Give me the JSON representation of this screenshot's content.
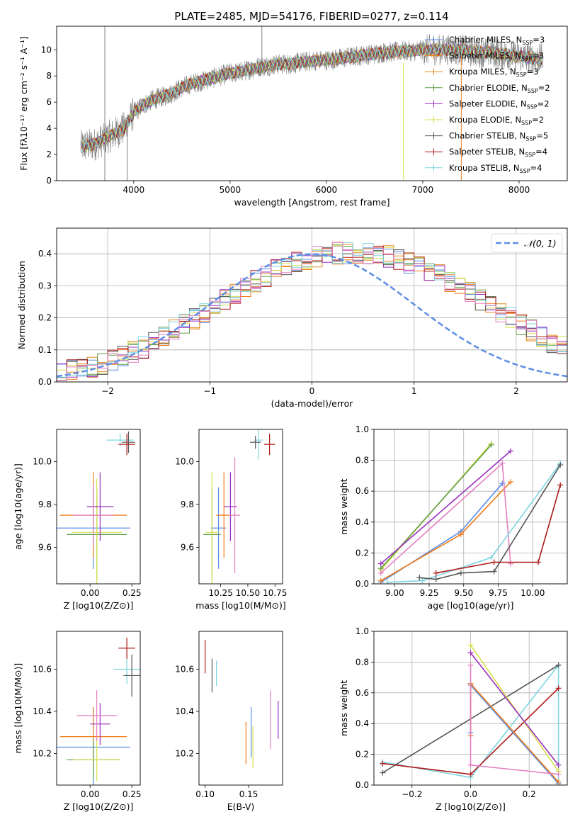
{
  "figure_title": "PLATE=2485, MJD=54176, FIBERID=0277, z=0.114",
  "colors": {
    "Chabrier MILES": "#5b8ee6",
    "Salpeter MILES": "#f07b1a",
    "Kroupa MILES": "#e08a1e",
    "Chabrier ELODIE": "#5f9e4a",
    "Salpeter ELODIE": "#9b30c0",
    "Kroupa ELODIE": "#d8e04a",
    "Chabrier STELIB": "#555555",
    "Salpeter STELIB": "#b01818",
    "Kroupa STELIB": "#7dd6e0",
    "pink": "#e67fc0",
    "data": "#808080"
  },
  "chart_data": [
    {
      "type": "line",
      "title": "PLATE=2485, MJD=54176, FIBERID=0277, z=0.114",
      "xlabel": "wavelength [Angstrom, rest frame]",
      "ylabel": "Flux [fλ10⁻¹⁷ erg cm⁻² s⁻¹ A⁻¹]",
      "xlim": [
        3200,
        8500
      ],
      "ylim": [
        0,
        11.8
      ],
      "xticks": [
        4000,
        5000,
        6000,
        7000,
        8000
      ],
      "yticks": [
        0,
        2,
        4,
        6,
        8,
        10
      ],
      "legend_position": "top-right",
      "legend": [
        {
          "key": "Chabrier MILES",
          "text": "Chabrier MILES, N",
          "sub": "SSP",
          "tail": "=3"
        },
        {
          "key": "Salpeter MILES",
          "text": "Salpeter MILES, N",
          "sub": "SSP",
          "tail": "=3"
        },
        {
          "key": "Kroupa MILES",
          "text": "Kroupa MILES, N",
          "sub": "SSP",
          "tail": "=3"
        },
        {
          "key": "Chabrier ELODIE",
          "text": "Chabrier ELODIE, N",
          "sub": "SSP",
          "tail": "=2"
        },
        {
          "key": "Salpeter ELODIE",
          "text": "Salpeter ELODIE, N",
          "sub": "SSP",
          "tail": "=2"
        },
        {
          "key": "Kroupa ELODIE",
          "text": "Kroupa ELODIE, N",
          "sub": "SSP",
          "tail": "=2"
        },
        {
          "key": "Chabrier STELIB",
          "text": "Chabrier STELIB, N",
          "sub": "SSP",
          "tail": "=5"
        },
        {
          "key": "Salpeter STELIB",
          "text": "Salpeter STELIB, N",
          "sub": "SSP",
          "tail": "=4"
        },
        {
          "key": "Kroupa STELIB",
          "text": "Kroupa STELIB, N",
          "sub": "SSP",
          "tail": "=4"
        }
      ],
      "model_continuum": [
        [
          3450,
          2.6
        ],
        [
          3600,
          2.8
        ],
        [
          3700,
          3.2
        ],
        [
          3800,
          3.6
        ],
        [
          3900,
          4.0
        ],
        [
          3950,
          4.6
        ],
        [
          4000,
          5.2
        ],
        [
          4100,
          5.8
        ],
        [
          4200,
          6.2
        ],
        [
          4300,
          6.4
        ],
        [
          4400,
          6.7
        ],
        [
          4500,
          7.1
        ],
        [
          4600,
          7.4
        ],
        [
          4700,
          7.6
        ],
        [
          4800,
          7.8
        ],
        [
          4900,
          8.0
        ],
        [
          5000,
          8.2
        ],
        [
          5100,
          8.3
        ],
        [
          5200,
          8.5
        ],
        [
          5300,
          8.7
        ],
        [
          5400,
          8.8
        ],
        [
          5500,
          8.9
        ],
        [
          5600,
          8.9
        ],
        [
          5700,
          9.0
        ],
        [
          5800,
          9.1
        ],
        [
          5900,
          9.2
        ],
        [
          6000,
          9.2
        ],
        [
          6100,
          9.3
        ],
        [
          6200,
          9.4
        ],
        [
          6300,
          9.5
        ],
        [
          6400,
          9.6
        ],
        [
          6500,
          9.7
        ],
        [
          6600,
          9.8
        ],
        [
          6700,
          9.8
        ],
        [
          6800,
          9.9
        ],
        [
          6900,
          9.9
        ],
        [
          7000,
          10.0
        ],
        [
          7100,
          10.0
        ],
        [
          7200,
          10.0
        ],
        [
          7300,
          10.0
        ],
        [
          7400,
          10.0
        ],
        [
          7500,
          9.9
        ],
        [
          7600,
          9.8
        ],
        [
          7700,
          9.8
        ],
        [
          7800,
          9.7
        ],
        [
          7900,
          9.6
        ],
        [
          8000,
          9.5
        ],
        [
          8100,
          9.4
        ],
        [
          8200,
          9.3
        ],
        [
          8250,
          9.3
        ]
      ]
    },
    {
      "type": "bar",
      "xlabel": "(data-model)/error",
      "ylabel": "Normed distribution",
      "xlim": [
        -2.5,
        2.5
      ],
      "ylim": [
        0,
        0.48
      ],
      "xticks": [
        -2,
        -1,
        0,
        1,
        2
      ],
      "yticks": [
        0.0,
        0.1,
        0.2,
        0.3,
        0.4
      ],
      "grid": true,
      "legend_position": "top-right",
      "legend": [
        {
          "text": "𝒩(0, 1)",
          "style": "dashed"
        }
      ],
      "bin_edges_start": -2.5,
      "bin_width": 0.1,
      "shape": [
        0.03,
        0.035,
        0.04,
        0.048,
        0.057,
        0.066,
        0.078,
        0.092,
        0.108,
        0.125,
        0.142,
        0.16,
        0.178,
        0.198,
        0.218,
        0.238,
        0.258,
        0.278,
        0.298,
        0.316,
        0.333,
        0.348,
        0.362,
        0.374,
        0.384,
        0.392,
        0.398,
        0.402,
        0.404,
        0.404,
        0.402,
        0.398,
        0.392,
        0.384,
        0.374,
        0.362,
        0.348,
        0.333,
        0.316,
        0.298,
        0.278,
        0.258,
        0.238,
        0.218,
        0.198,
        0.178,
        0.16,
        0.142,
        0.125,
        0.108,
        0.092
      ]
    },
    {
      "type": "scatter",
      "name": "age-Z",
      "xlabel": "Z [log10(Z/Z⊙)]",
      "ylabel": "age [log10(age/yr)]",
      "xlim": [
        -0.2,
        0.3
      ],
      "ylim": [
        9.43,
        10.15
      ],
      "xticks": [
        0.0,
        0.25
      ],
      "yticks": [
        9.6,
        9.8,
        10.0
      ],
      "points": [
        {
          "c": "Chabrier MILES",
          "x": 0.02,
          "y": 9.69,
          "xe": 0.22,
          "ye": 0.19
        },
        {
          "c": "Salpeter MILES",
          "x": 0.02,
          "y": 9.75,
          "xe": 0.2,
          "ye": 0.2
        },
        {
          "c": "Chabrier ELODIE",
          "x": 0.04,
          "y": 9.66,
          "xe": 0.18,
          "ye": 0.21
        },
        {
          "c": "Kroupa ELODIE",
          "x": 0.04,
          "y": 9.67,
          "xe": 0.15,
          "ye": 0.25
        },
        {
          "c": "Salpeter ELODIE",
          "x": 0.06,
          "y": 9.79,
          "xe": 0.08,
          "ye": 0.16
        },
        {
          "c": "pink",
          "x": 0.02,
          "y": 9.75,
          "xe": 0.12,
          "ye": 0.14
        },
        {
          "c": "Kroupa STELIB",
          "x": 0.18,
          "y": 10.1,
          "xe": 0.08,
          "ye": 0.03
        },
        {
          "c": "Chabrier STELIB",
          "x": 0.23,
          "y": 10.09,
          "xe": 0.04,
          "ye": 0.05
        },
        {
          "c": "Salpeter STELIB",
          "x": 0.22,
          "y": 10.08,
          "xe": 0.05,
          "ye": 0.05
        }
      ]
    },
    {
      "type": "scatter",
      "name": "age-mass",
      "xlabel": "mass [log10(M/M⊙)]",
      "ylabel": "",
      "xlim": [
        10.05,
        10.82
      ],
      "ylim": [
        9.43,
        10.15
      ],
      "xticks": [
        10.25,
        10.5,
        10.75
      ],
      "yticks": [
        9.6,
        9.8,
        10.0
      ],
      "points": [
        {
          "c": "Chabrier MILES",
          "x": 10.23,
          "y": 9.69,
          "xe": 0.07,
          "ye": 0.19
        },
        {
          "c": "Salpeter MILES",
          "x": 10.28,
          "y": 9.75,
          "xe": 0.07,
          "ye": 0.2
        },
        {
          "c": "Chabrier ELODIE",
          "x": 10.17,
          "y": 9.66,
          "xe": 0.08,
          "ye": 0.21
        },
        {
          "c": "Kroupa ELODIE",
          "x": 10.17,
          "y": 9.67,
          "xe": 0.06,
          "ye": 0.28
        },
        {
          "c": "Salpeter ELODIE",
          "x": 10.34,
          "y": 9.79,
          "xe": 0.06,
          "ye": 0.16
        },
        {
          "c": "pink",
          "x": 10.38,
          "y": 9.75,
          "xe": 0.05,
          "ye": 0.27
        },
        {
          "c": "Kroupa STELIB",
          "x": 10.6,
          "y": 10.1,
          "xe": 0.04,
          "ye": 0.09
        },
        {
          "c": "Chabrier STELIB",
          "x": 10.57,
          "y": 10.09,
          "xe": 0.05,
          "ye": 0.03
        },
        {
          "c": "Salpeter STELIB",
          "x": 10.7,
          "y": 10.08,
          "xe": 0.05,
          "ye": 0.05
        }
      ]
    },
    {
      "type": "line",
      "name": "mass weight vs age",
      "xlabel": "age [log10(age/yr)]",
      "ylabel": "mass weight",
      "xlim": [
        8.85,
        10.25
      ],
      "ylim": [
        0.0,
        1.0
      ],
      "xticks": [
        9.0,
        9.25,
        9.5,
        9.75,
        10.0
      ],
      "yticks": [
        0.0,
        0.2,
        0.4,
        0.6,
        0.8,
        1.0
      ],
      "grid": true,
      "series": [
        {
          "c": "Chabrier MILES",
          "x": [
            8.9,
            9.48,
            9.78
          ],
          "y": [
            0.01,
            0.34,
            0.65
          ]
        },
        {
          "c": "Salpeter MILES",
          "x": [
            8.9,
            9.48,
            9.84
          ],
          "y": [
            0.02,
            0.32,
            0.66
          ]
        },
        {
          "c": "Kroupa ELODIE",
          "x": [
            8.9,
            9.7
          ],
          "y": [
            0.09,
            0.91
          ]
        },
        {
          "c": "Chabrier ELODIE",
          "x": [
            8.9,
            9.7
          ],
          "y": [
            0.1,
            0.9
          ]
        },
        {
          "c": "Salpeter ELODIE",
          "x": [
            8.9,
            9.84
          ],
          "y": [
            0.13,
            0.86
          ]
        },
        {
          "c": "pink",
          "x": [
            8.9,
            9.78,
            9.84
          ],
          "y": [
            0.07,
            0.78,
            0.13
          ]
        },
        {
          "c": "Kroupa STELIB",
          "x": [
            8.95,
            9.2,
            9.7,
            10.2
          ],
          "y": [
            0.01,
            0.02,
            0.17,
            0.78
          ]
        },
        {
          "c": "Chabrier STELIB",
          "x": [
            9.18,
            9.3,
            9.48,
            9.72,
            10.2
          ],
          "y": [
            0.04,
            0.03,
            0.07,
            0.08,
            0.77
          ]
        },
        {
          "c": "Salpeter STELIB",
          "x": [
            9.3,
            9.72,
            10.04,
            10.2
          ],
          "y": [
            0.07,
            0.14,
            0.14,
            0.64
          ]
        }
      ]
    },
    {
      "type": "scatter",
      "name": "mass-Z",
      "xlabel": "Z [log10(Z/Z⊙)]",
      "ylabel": "mass [log10(M/M⊙)]",
      "xlim": [
        -0.2,
        0.3
      ],
      "ylim": [
        10.05,
        10.78
      ],
      "xticks": [
        0.0,
        0.25
      ],
      "yticks": [
        10.2,
        10.4,
        10.6
      ],
      "points": [
        {
          "c": "Chabrier MILES",
          "x": 0.02,
          "y": 10.23,
          "xe": 0.22,
          "ye": 0.19
        },
        {
          "c": "Salpeter MILES",
          "x": 0.02,
          "y": 10.28,
          "xe": 0.2,
          "ye": 0.14
        },
        {
          "c": "Chabrier ELODIE",
          "x": 0.02,
          "y": 10.17,
          "xe": 0.16,
          "ye": 0.09
        },
        {
          "c": "Kroupa ELODIE",
          "x": 0.04,
          "y": 10.17,
          "xe": 0.14,
          "ye": 0.1
        },
        {
          "c": "Salpeter ELODIE",
          "x": 0.06,
          "y": 10.34,
          "xe": 0.06,
          "ye": 0.1
        },
        {
          "c": "pink",
          "x": 0.04,
          "y": 10.38,
          "xe": 0.12,
          "ye": 0.12
        },
        {
          "c": "Kroupa STELIB",
          "x": 0.22,
          "y": 10.6,
          "xe": 0.08,
          "ye": 0.07
        },
        {
          "c": "Chabrier STELIB",
          "x": 0.25,
          "y": 10.57,
          "xe": 0.05,
          "ye": 0.1
        },
        {
          "c": "Salpeter STELIB",
          "x": 0.22,
          "y": 10.7,
          "xe": 0.05,
          "ye": 0.05
        }
      ]
    },
    {
      "type": "scatter",
      "name": "mass-EBV",
      "xlabel": "E(B-V)",
      "ylabel": "",
      "xlim": [
        0.093,
        0.189
      ],
      "ylim": [
        10.05,
        10.78
      ],
      "xticks": [
        0.1,
        0.15
      ],
      "yticks": [
        10.2,
        10.4,
        10.6
      ],
      "points": [
        {
          "c": "Salpeter STELIB",
          "x": 0.1,
          "y": 10.66,
          "ye": 0.08
        },
        {
          "c": "Chabrier STELIB",
          "x": 0.108,
          "y": 10.57,
          "ye": 0.08
        },
        {
          "c": "Kroupa STELIB",
          "x": 0.113,
          "y": 10.58,
          "ye": 0.06
        },
        {
          "c": "Salpeter MILES",
          "x": 0.147,
          "y": 10.25,
          "ye": 0.1
        },
        {
          "c": "Chabrier MILES",
          "x": 0.153,
          "y": 10.3,
          "ye": 0.12
        },
        {
          "c": "Kroupa ELODIE",
          "x": 0.155,
          "y": 10.23,
          "ye": 0.1
        },
        {
          "c": "pink",
          "x": 0.175,
          "y": 10.36,
          "ye": 0.14
        },
        {
          "c": "Salpeter ELODIE",
          "x": 0.184,
          "y": 10.36,
          "ye": 0.09
        }
      ]
    },
    {
      "type": "line",
      "name": "mass weight vs Z",
      "xlabel": "Z [log10(Z/Z⊙)]",
      "ylabel": "mass weight",
      "xlim": [
        -0.33,
        0.33
      ],
      "ylim": [
        0.0,
        1.0
      ],
      "xticks": [
        -0.2,
        0.0,
        0.2
      ],
      "yticks": [
        0.0,
        0.2,
        0.4,
        0.6,
        0.8,
        1.0
      ],
      "grid": true,
      "series": [
        {
          "c": "Kroupa STELIB",
          "x": [
            -0.3,
            0.0,
            0.3,
            0.3
          ],
          "y": [
            0.15,
            0.05,
            0.78,
            0.02
          ]
        },
        {
          "c": "Chabrier STELIB",
          "x": [
            -0.3,
            0.3
          ],
          "y": [
            0.08,
            0.78
          ]
        },
        {
          "c": "Salpeter STELIB",
          "x": [
            -0.3,
            0.0,
            0.3
          ],
          "y": [
            0.14,
            0.07,
            0.63
          ]
        },
        {
          "c": "Chabrier MILES",
          "x": [
            0.0,
            0.0,
            0.3
          ],
          "y": [
            0.34,
            0.65,
            0.01
          ]
        },
        {
          "c": "Salpeter MILES",
          "x": [
            0.0,
            0.0,
            0.3
          ],
          "y": [
            0.32,
            0.66,
            0.02
          ]
        },
        {
          "c": "Kroupa ELODIE",
          "x": [
            0.0,
            0.3
          ],
          "y": [
            0.91,
            0.09
          ]
        },
        {
          "c": "Salpeter ELODIE",
          "x": [
            0.0,
            0.3
          ],
          "y": [
            0.86,
            0.13
          ]
        },
        {
          "c": "pink",
          "x": [
            0.0,
            0.0,
            0.0,
            0.3
          ],
          "y": [
            0.78,
            0.13,
            0.13,
            0.07
          ]
        }
      ]
    }
  ]
}
